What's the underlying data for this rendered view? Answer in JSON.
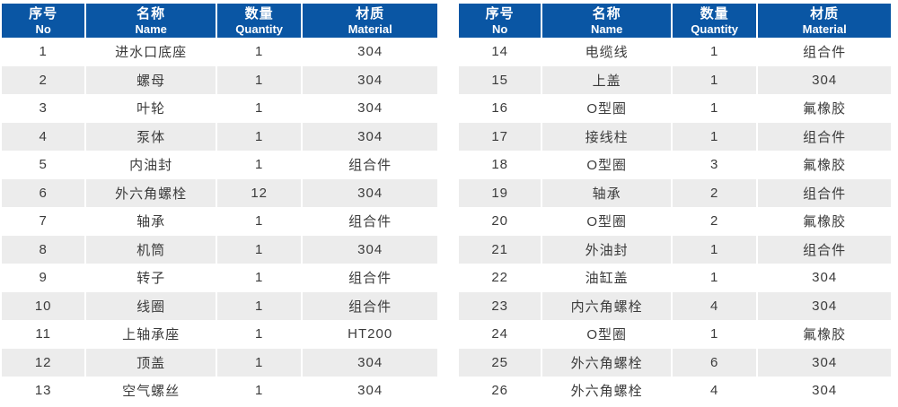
{
  "theme": {
    "header_bg": "#0A56A4",
    "header_text": "#FFFFFF",
    "stripe_bg": "#ECECEC",
    "body_text": "#3B3B3B"
  },
  "columns": [
    {
      "zh": "序号",
      "en": "No"
    },
    {
      "zh": "名称",
      "en": "Name"
    },
    {
      "zh": "数量",
      "en": "Quantity"
    },
    {
      "zh": "材质",
      "en": "Material"
    }
  ],
  "tables": [
    {
      "rows": [
        [
          "1",
          "进水口底座",
          "1",
          "304"
        ],
        [
          "2",
          "螺母",
          "1",
          "304"
        ],
        [
          "3",
          "叶轮",
          "1",
          "304"
        ],
        [
          "4",
          "泵体",
          "1",
          "304"
        ],
        [
          "5",
          "内油封",
          "1",
          "组合件"
        ],
        [
          "6",
          "外六角螺栓",
          "12",
          "304"
        ],
        [
          "7",
          "轴承",
          "1",
          "组合件"
        ],
        [
          "8",
          "机筒",
          "1",
          "304"
        ],
        [
          "9",
          "转子",
          "1",
          "组合件"
        ],
        [
          "10",
          "线圈",
          "1",
          "组合件"
        ],
        [
          "11",
          "上轴承座",
          "1",
          "HT200"
        ],
        [
          "12",
          "顶盖",
          "1",
          "304"
        ],
        [
          "13",
          "空气螺丝",
          "1",
          "304"
        ]
      ]
    },
    {
      "rows": [
        [
          "14",
          "电缆线",
          "1",
          "组合件"
        ],
        [
          "15",
          "上盖",
          "1",
          "304"
        ],
        [
          "16",
          "O型圈",
          "1",
          "氟橡胶"
        ],
        [
          "17",
          "接线柱",
          "1",
          "组合件"
        ],
        [
          "18",
          "O型圈",
          "3",
          "氟橡胶"
        ],
        [
          "19",
          "轴承",
          "2",
          "组合件"
        ],
        [
          "20",
          "O型圈",
          "2",
          "氟橡胶"
        ],
        [
          "21",
          "外油封",
          "1",
          "组合件"
        ],
        [
          "22",
          "油缸盖",
          "1",
          "304"
        ],
        [
          "23",
          "内六角螺栓",
          "4",
          "304"
        ],
        [
          "24",
          "O型圈",
          "1",
          "氟橡胶"
        ],
        [
          "25",
          "外六角螺栓",
          "6",
          "304"
        ],
        [
          "26",
          "外六角螺栓",
          "4",
          "304"
        ]
      ]
    }
  ]
}
